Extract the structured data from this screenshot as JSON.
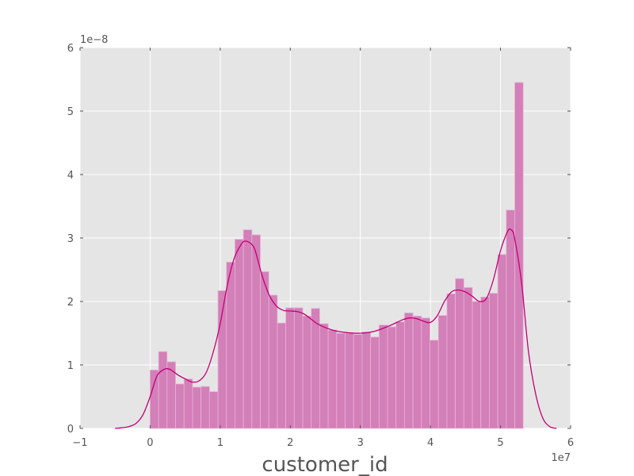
{
  "chart_data": {
    "type": "bar",
    "subtype": "histogram-with-kde",
    "title": "",
    "xlabel": "customer_id",
    "ylabel": "",
    "x_multiplier_text": "1e7",
    "y_multiplier_text": "1e−8",
    "xlim": [
      -1,
      6
    ],
    "ylim": [
      0,
      6
    ],
    "x_ticks": [
      -1,
      0,
      1,
      2,
      3,
      4,
      5,
      6
    ],
    "x_tick_labels": [
      "−1",
      "0",
      "1",
      "2",
      "3",
      "4",
      "5",
      "6"
    ],
    "y_ticks": [
      0,
      1,
      2,
      3,
      4,
      5,
      6
    ],
    "y_tick_labels": [
      "0",
      "1",
      "2",
      "3",
      "4",
      "5",
      "6"
    ],
    "grid": true,
    "legend": "none",
    "bin_start": 0.0,
    "bin_width": 0.121,
    "values": [
      0.92,
      1.21,
      1.05,
      0.7,
      0.78,
      0.65,
      0.66,
      0.58,
      2.17,
      2.62,
      2.98,
      3.13,
      3.05,
      2.47,
      2.1,
      1.66,
      1.9,
      1.9,
      1.77,
      1.89,
      1.65,
      1.55,
      1.5,
      1.5,
      1.48,
      1.52,
      1.44,
      1.63,
      1.6,
      1.68,
      1.82,
      1.77,
      1.74,
      1.39,
      1.78,
      2.12,
      2.36,
      2.22,
      2.0,
      2.07,
      2.13,
      2.74,
      3.44,
      5.45
    ],
    "kde": {
      "x": [
        -0.5,
        -0.4,
        -0.3,
        -0.2,
        -0.1,
        0.0,
        0.1,
        0.2,
        0.25,
        0.3,
        0.4,
        0.5,
        0.6,
        0.7,
        0.8,
        0.9,
        1.0,
        1.1,
        1.2,
        1.3,
        1.35,
        1.4,
        1.45,
        1.5,
        1.6,
        1.7,
        1.8,
        1.9,
        2.0,
        2.1,
        2.2,
        2.3,
        2.4,
        2.6,
        2.8,
        3.0,
        3.2,
        3.4,
        3.6,
        3.7,
        3.8,
        3.9,
        4.0,
        4.1,
        4.2,
        4.3,
        4.4,
        4.5,
        4.6,
        4.7,
        4.8,
        4.9,
        5.0,
        5.1,
        5.15,
        5.2,
        5.3,
        5.4,
        5.5,
        5.6,
        5.7,
        5.8
      ],
      "y": [
        0.0,
        0.01,
        0.03,
        0.08,
        0.22,
        0.5,
        0.83,
        0.93,
        0.94,
        0.92,
        0.84,
        0.78,
        0.73,
        0.75,
        0.88,
        1.2,
        1.65,
        2.25,
        2.68,
        2.9,
        2.95,
        2.94,
        2.9,
        2.8,
        2.4,
        2.1,
        1.93,
        1.86,
        1.85,
        1.84,
        1.8,
        1.72,
        1.64,
        1.55,
        1.51,
        1.5,
        1.53,
        1.61,
        1.71,
        1.74,
        1.73,
        1.69,
        1.67,
        1.78,
        2.0,
        2.15,
        2.18,
        2.15,
        2.08,
        2.0,
        2.05,
        2.35,
        2.8,
        3.1,
        3.13,
        3.0,
        2.3,
        1.2,
        0.55,
        0.17,
        0.03,
        0.0
      ]
    },
    "colors": {
      "bar_fill": "#d37fb8",
      "bar_edge": "#e8b3d6",
      "kde_line": "#c20078",
      "plot_background": "#e5e5e5",
      "grid": "#ffffff",
      "text": "#555555"
    }
  }
}
